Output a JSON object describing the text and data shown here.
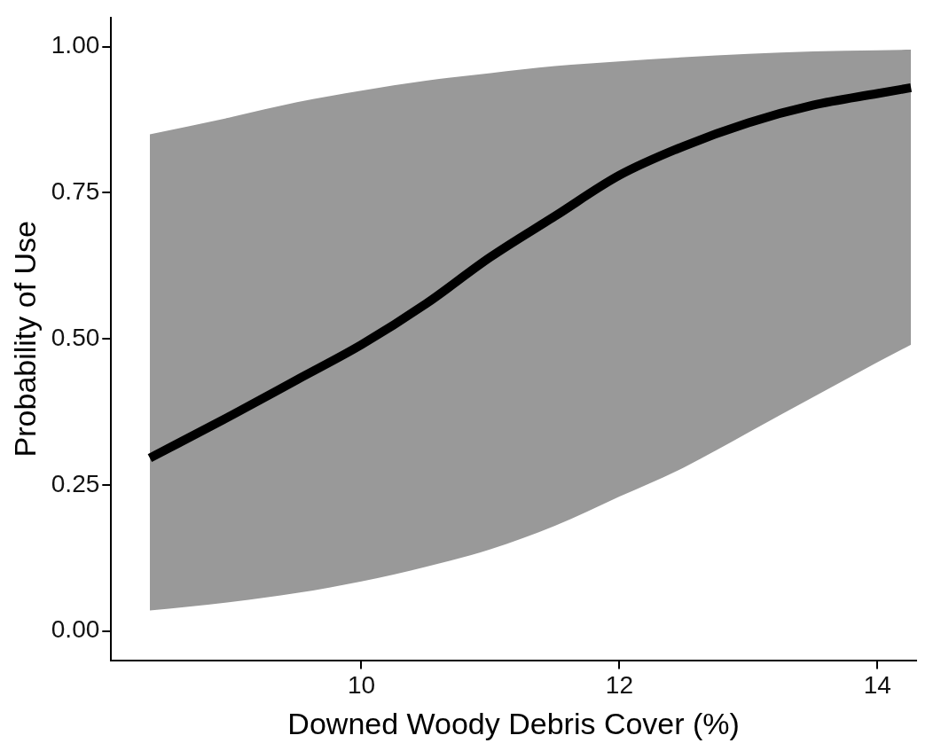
{
  "chart_data": {
    "type": "line",
    "xlabel": "Downed Woody Debris Cover (%)",
    "ylabel": "Probability of Use",
    "xlim": [
      8.06,
      14.3
    ],
    "xticks": [
      10,
      12,
      14
    ],
    "ylim": [
      -0.05,
      1.05
    ],
    "yticks": [
      {
        "value": 0,
        "label": "0.00"
      },
      {
        "value": 0.25,
        "label": "0.25"
      },
      {
        "value": 0.5,
        "label": "0.50"
      },
      {
        "value": 0.75,
        "label": "0.75"
      },
      {
        "value": 1,
        "label": "1.00"
      }
    ],
    "grid": false,
    "legend": false,
    "marker": "none",
    "line_style": "solid",
    "series": [
      {
        "color": "#000000",
        "x": [
          8.36,
          9,
          9.5,
          10,
          10.5,
          11,
          11.5,
          12,
          12.5,
          13,
          13.5,
          14,
          14.26
        ],
        "values": [
          0.296,
          0.37,
          0.43,
          0.49,
          0.56,
          0.64,
          0.71,
          0.78,
          0.83,
          0.87,
          0.9,
          0.92,
          0.93
        ],
        "lower": [
          0.035,
          0.05,
          0.065,
          0.085,
          0.11,
          0.14,
          0.18,
          0.23,
          0.28,
          0.34,
          0.4,
          0.46,
          0.49
        ],
        "upper": [
          0.85,
          0.88,
          0.905,
          0.925,
          0.942,
          0.955,
          0.967,
          0.975,
          0.982,
          0.988,
          0.992,
          0.994,
          0.995
        ]
      }
    ]
  }
}
